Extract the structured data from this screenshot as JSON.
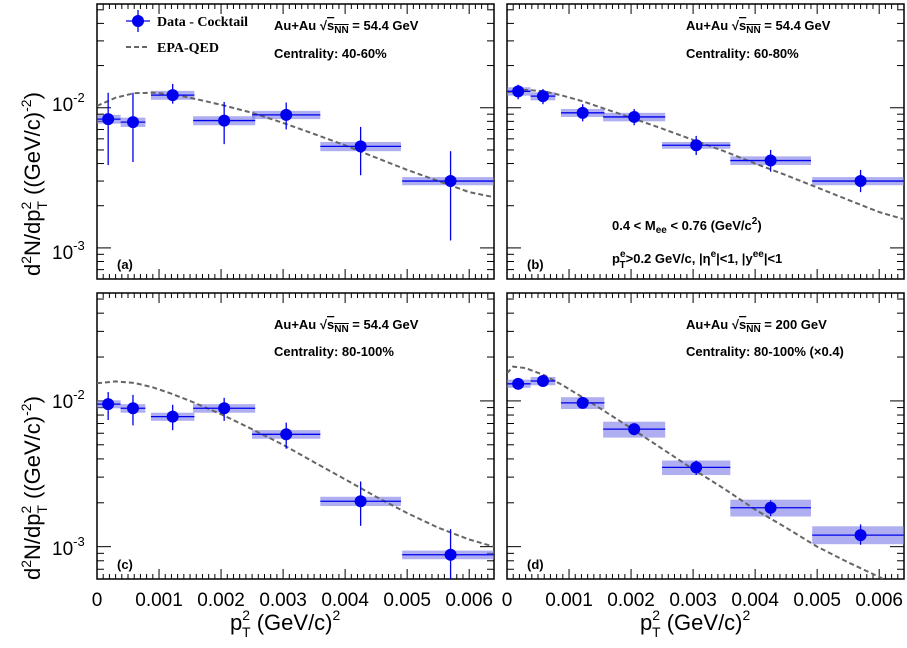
{
  "colors": {
    "data": "#0000ee",
    "band": "#7878e8",
    "theory": "#666666"
  },
  "legend": {
    "data_label": "Data - Cocktail",
    "theory_label": "EPA-QED"
  },
  "axes": {
    "xlabel_main": "p",
    "xlabel_sup": "2",
    "xlabel_sub": "T",
    "xlabel_rest": " (GeV/c)",
    "xlabel_sup2": "2",
    "ylabel_pre": "d",
    "ylabel_sup1": "2",
    "ylabel_mid": "N/dp",
    "ylabel_sup2": "2",
    "ylabel_sub": "T",
    "ylabel_rest": " ((GeV/c)",
    "ylabel_sup3": "-2",
    "ylabel_end": ")",
    "x_ticks": [
      "0",
      "0.001",
      "0.002",
      "0.003",
      "0.004",
      "0.005",
      "0.006"
    ],
    "y_tick_mant": "10",
    "y_tick_exp_top": "-2",
    "y_tick_exp_bot": "-3"
  },
  "cuts": {
    "mass_pre": "0.4 < M",
    "mass_sub": "ee",
    "mass_post": " < 0.76 (GeV/c",
    "mass_sup": "2",
    "mass_end": ")",
    "kin_p": "p",
    "kin_sup_e": "e",
    "kin_sub_T": "T",
    "kin_a": ">0.2 GeV/c, |η",
    "kin_sup_e2": "e",
    "kin_b": "|<1, |y",
    "kin_sup_ee": "ee",
    "kin_c": "|<1"
  },
  "chart_data": [
    {
      "type": "scatter",
      "tag": "(a)",
      "system": "Au+Au",
      "sqrt": "s",
      "sqrt_sub": "NN",
      "energy": " = 54.4 GeV",
      "centrality": "Centrality: 40-60%",
      "xlim": [
        0,
        0.0064
      ],
      "ylim": [
        0.0006,
        0.055
      ],
      "yscale": "log",
      "x": [
        0.00018,
        0.00058,
        0.00122,
        0.00205,
        0.00305,
        0.00425,
        0.0057
      ],
      "xerr": [
        0.0002,
        0.0002,
        0.00035,
        0.0005,
        0.00055,
        0.00065,
        0.00078
      ],
      "y": [
        0.0083,
        0.0079,
        0.0123,
        0.0081,
        0.0089,
        0.0053,
        0.003
      ],
      "ylow": [
        0.0039,
        0.0041,
        0.0107,
        0.0055,
        0.007,
        0.0033,
        0.00113
      ],
      "yhigh": [
        0.0128,
        0.0128,
        0.0148,
        0.011,
        0.0109,
        0.0073,
        0.0049
      ],
      "syslow": [
        0.0077,
        0.0073,
        0.0114,
        0.0075,
        0.0083,
        0.0049,
        0.0028
      ],
      "syshigh": [
        0.0089,
        0.0085,
        0.0132,
        0.0087,
        0.0095,
        0.0057,
        0.0032
      ],
      "theory": {
        "x": [
          0,
          0.0003,
          0.0006,
          0.0009,
          0.0012,
          0.0015,
          0.002,
          0.0025,
          0.003,
          0.0035,
          0.004,
          0.0045,
          0.005,
          0.0055,
          0.006,
          0.0064
        ],
        "y": [
          0.0103,
          0.0118,
          0.0127,
          0.0128,
          0.0125,
          0.0118,
          0.0105,
          0.0092,
          0.0078,
          0.0065,
          0.0054,
          0.0044,
          0.0036,
          0.003,
          0.0025,
          0.0023
        ]
      }
    },
    {
      "type": "scatter",
      "tag": "(b)",
      "system": "Au+Au",
      "sqrt": "s",
      "sqrt_sub": "NN",
      "energy": " = 54.4 GeV",
      "centrality": "Centrality: 60-80%",
      "xlim": [
        0,
        0.0064
      ],
      "ylim": [
        0.0006,
        0.055
      ],
      "yscale": "log",
      "x": [
        0.00018,
        0.00058,
        0.00122,
        0.00205,
        0.00305,
        0.00425,
        0.0057
      ],
      "xerr": [
        0.0002,
        0.0002,
        0.00035,
        0.0005,
        0.00055,
        0.00065,
        0.00078
      ],
      "y": [
        0.0131,
        0.0121,
        0.0092,
        0.0086,
        0.0054,
        0.0042,
        0.003
      ],
      "ylow": [
        0.0115,
        0.0106,
        0.008,
        0.0075,
        0.0046,
        0.0035,
        0.0025
      ],
      "yhigh": [
        0.0146,
        0.0136,
        0.0106,
        0.0098,
        0.0063,
        0.005,
        0.0036
      ],
      "syslow": [
        0.0122,
        0.0113,
        0.0086,
        0.008,
        0.0051,
        0.0039,
        0.0028
      ],
      "syshigh": [
        0.014,
        0.0129,
        0.0098,
        0.0092,
        0.0057,
        0.0045,
        0.0032
      ],
      "theory": {
        "x": [
          0,
          0.0003,
          0.0006,
          0.0009,
          0.0012,
          0.0015,
          0.002,
          0.0025,
          0.003,
          0.0035,
          0.004,
          0.0045,
          0.005,
          0.0055,
          0.006,
          0.0064
        ],
        "y": [
          0.0129,
          0.0134,
          0.0131,
          0.0122,
          0.0112,
          0.0101,
          0.0085,
          0.0071,
          0.0059,
          0.0049,
          0.004,
          0.0033,
          0.0027,
          0.0022,
          0.0018,
          0.0016
        ]
      }
    },
    {
      "type": "scatter",
      "tag": "(c)",
      "system": "Au+Au",
      "sqrt": "s",
      "sqrt_sub": "NN",
      "energy": " = 54.4 GeV",
      "centrality": "Centrality: 80-100%",
      "xlim": [
        0,
        0.0064
      ],
      "ylim": [
        0.0006,
        0.055
      ],
      "yscale": "log",
      "x": [
        0.00018,
        0.00058,
        0.00122,
        0.00205,
        0.00305,
        0.00425,
        0.0057
      ],
      "xerr": [
        0.0002,
        0.0002,
        0.00035,
        0.0005,
        0.00055,
        0.00065,
        0.00078
      ],
      "y": [
        0.0095,
        0.0089,
        0.0078,
        0.0089,
        0.0059,
        0.00205,
        0.00088
      ],
      "ylow": [
        0.0074,
        0.0068,
        0.0063,
        0.0073,
        0.0047,
        0.00139,
        0.00058
      ],
      "yhigh": [
        0.0115,
        0.011,
        0.0094,
        0.0105,
        0.0071,
        0.0028,
        0.00132
      ],
      "syslow": [
        0.0089,
        0.0083,
        0.0073,
        0.0083,
        0.0055,
        0.0019,
        0.00082
      ],
      "syshigh": [
        0.0101,
        0.0095,
        0.0083,
        0.0095,
        0.0063,
        0.0022,
        0.00094
      ],
      "theory": {
        "x": [
          0,
          0.0003,
          0.0006,
          0.0009,
          0.0012,
          0.0015,
          0.002,
          0.0025,
          0.003,
          0.0035,
          0.004,
          0.0045,
          0.005,
          0.0055,
          0.006,
          0.0064
        ],
        "y": [
          0.0132,
          0.0136,
          0.0133,
          0.0124,
          0.0112,
          0.01,
          0.0081,
          0.0064,
          0.005,
          0.0038,
          0.0029,
          0.0022,
          0.0017,
          0.00135,
          0.00112,
          0.001
        ]
      }
    },
    {
      "type": "scatter",
      "tag": "(d)",
      "system": "Au+Au",
      "sqrt": "s",
      "sqrt_sub": "NN",
      "energy": " = 200 GeV",
      "centrality": "Centrality: 80-100% (×0.4)",
      "xlim": [
        0,
        0.0064
      ],
      "ylim": [
        0.0006,
        0.055
      ],
      "yscale": "log",
      "x": [
        0.00018,
        0.00058,
        0.00122,
        0.00205,
        0.00305,
        0.00425,
        0.0057
      ],
      "xerr": [
        0.0002,
        0.0002,
        0.00035,
        0.0005,
        0.00055,
        0.00065,
        0.00078
      ],
      "y": [
        0.0131,
        0.0137,
        0.0097,
        0.0064,
        0.0035,
        0.00185,
        0.0012
      ],
      "ylow": [
        0.0122,
        0.0128,
        0.0091,
        0.0058,
        0.0031,
        0.00162,
        0.00103
      ],
      "yhigh": [
        0.014,
        0.0146,
        0.0103,
        0.007,
        0.0039,
        0.00208,
        0.00142
      ],
      "syslow": [
        0.0123,
        0.0128,
        0.0088,
        0.0056,
        0.0031,
        0.00161,
        0.00104
      ],
      "syshigh": [
        0.014,
        0.0146,
        0.0106,
        0.0072,
        0.0039,
        0.0021,
        0.00138
      ],
      "theory": {
        "x": [
          0,
          0.0001,
          0.0003,
          0.0006,
          0.0009,
          0.0012,
          0.0015,
          0.002,
          0.0025,
          0.003,
          0.0035,
          0.004,
          0.0045,
          0.005,
          0.0055,
          0.006,
          0.0064
        ],
        "y": [
          0.0155,
          0.0172,
          0.0168,
          0.015,
          0.0128,
          0.0107,
          0.0089,
          0.0065,
          0.0047,
          0.0034,
          0.0025,
          0.0018,
          0.00135,
          0.001,
          0.00078,
          0.00062,
          0.0005
        ]
      }
    }
  ]
}
